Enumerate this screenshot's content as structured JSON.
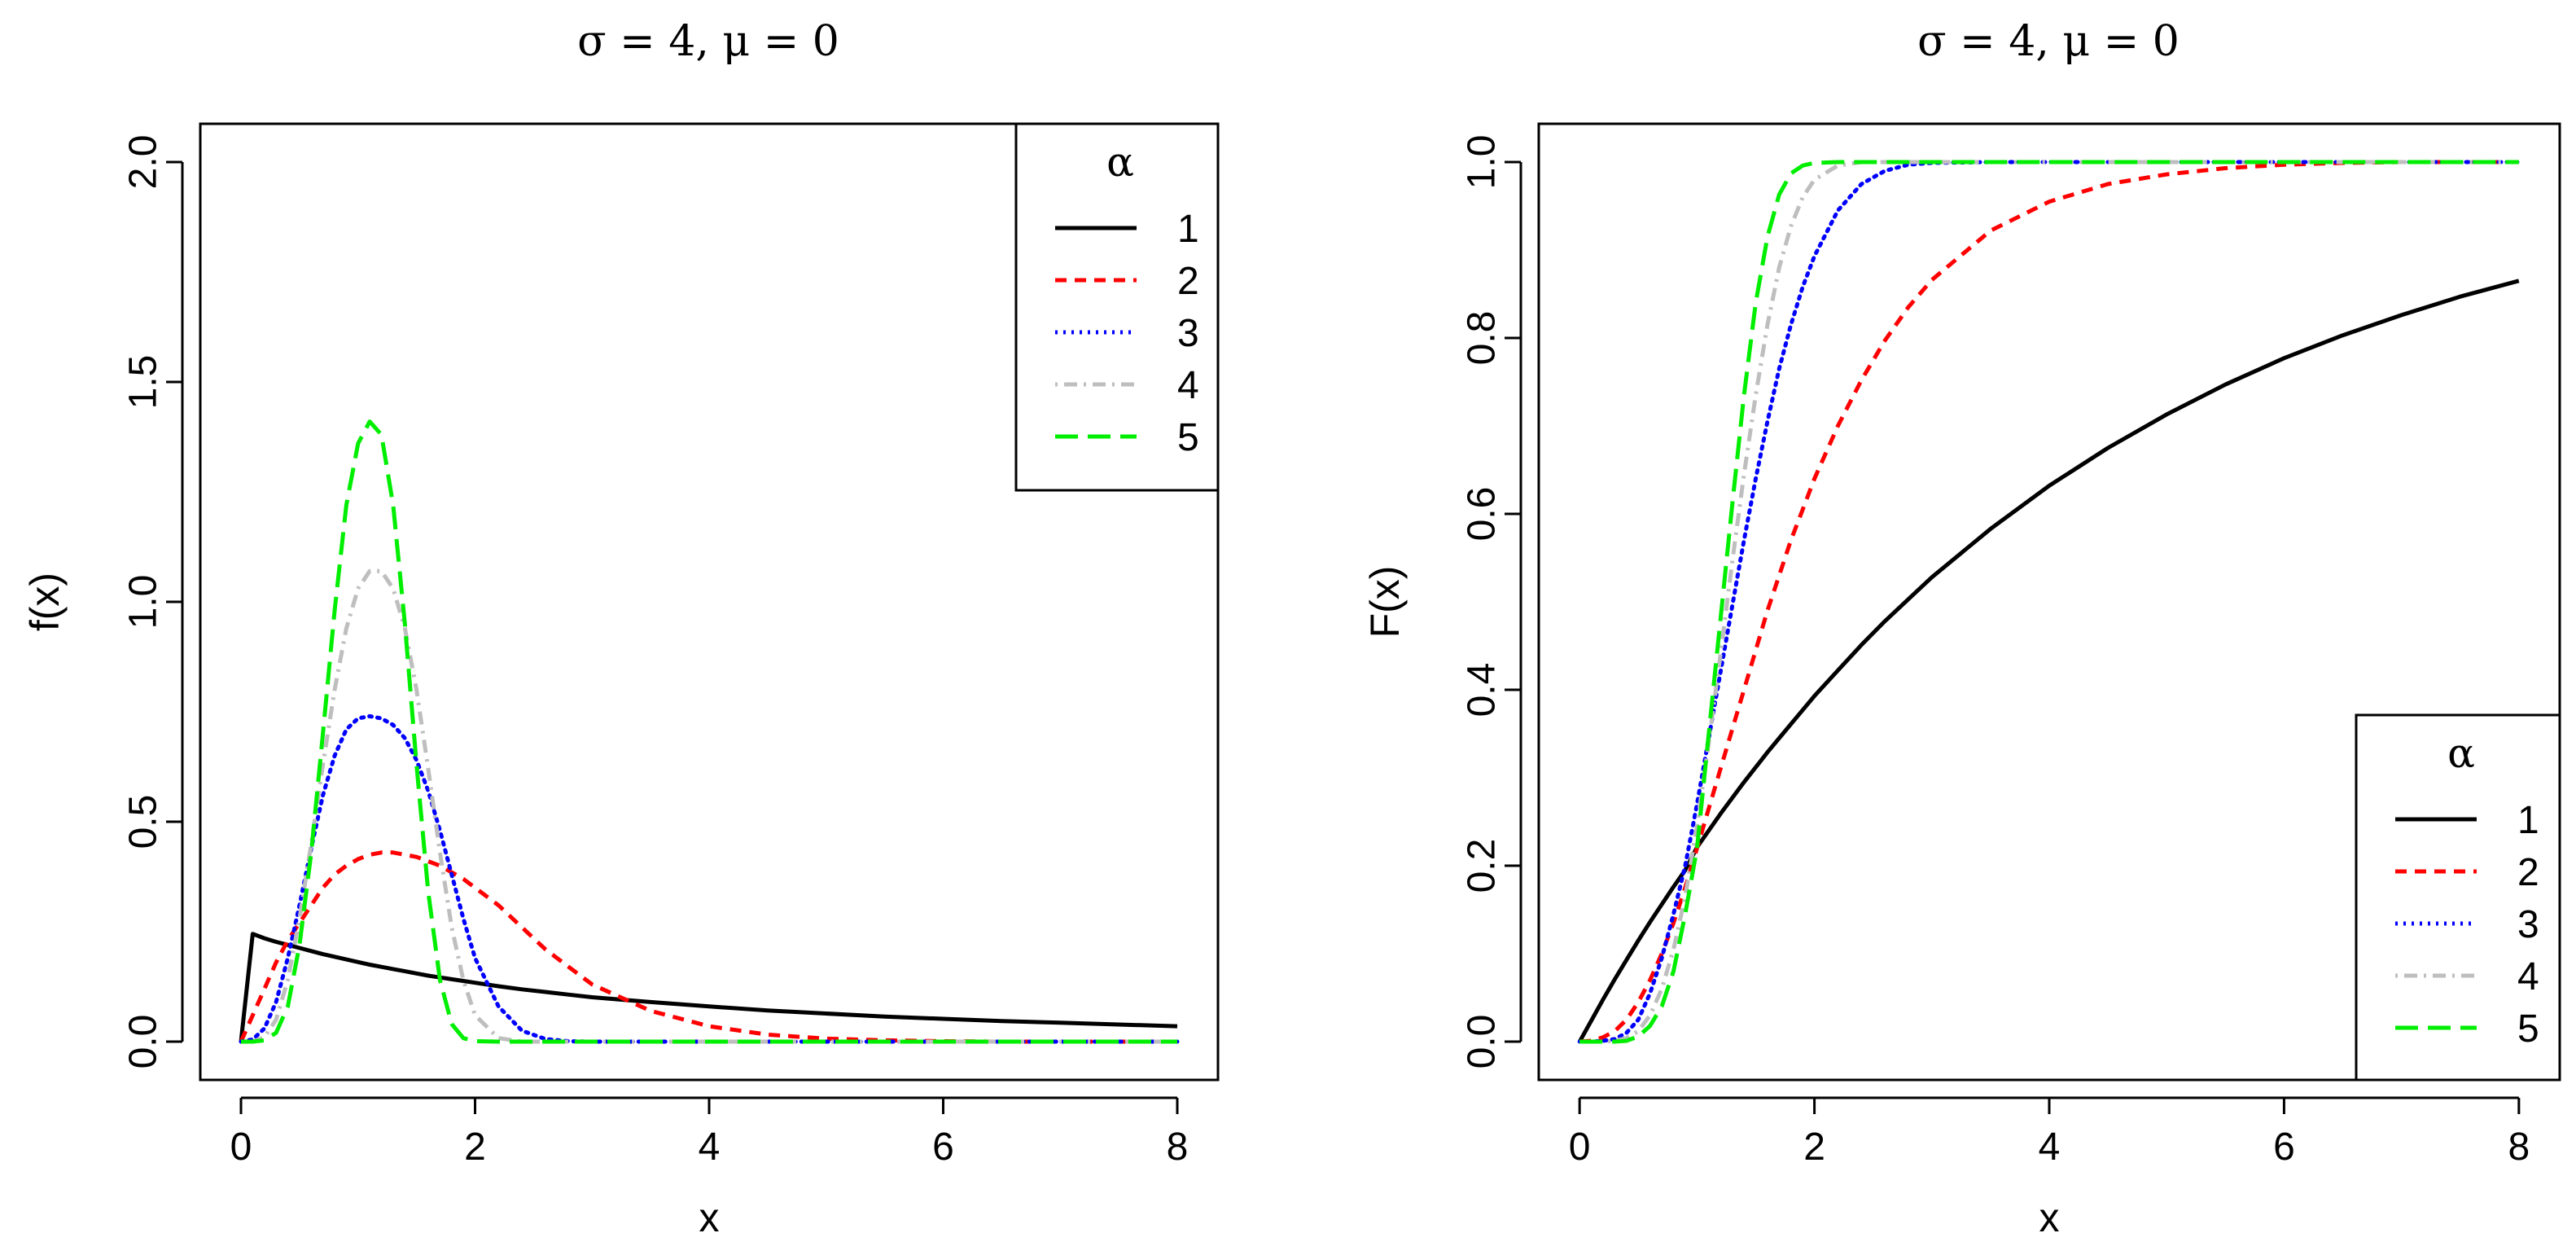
{
  "chart_data": [
    {
      "type": "line",
      "title": "σ = 4, μ = 0",
      "xlabel": "x",
      "ylabel": "f(x)",
      "xlim": [
        0,
        8
      ],
      "ylim": [
        0,
        2
      ],
      "x_ticks": [
        0,
        2,
        4,
        6,
        8
      ],
      "y_ticks": [
        0,
        0.5,
        1,
        1.5,
        2
      ],
      "x_tick_labels": [
        "0",
        "2",
        "4",
        "6",
        "8"
      ],
      "y_tick_labels": [
        "0.0",
        "0.5",
        "1.0",
        "1.5",
        "2.0"
      ],
      "grid": false,
      "legend": {
        "title": "α",
        "placement": "top-right",
        "entries": [
          "1",
          "2",
          "3",
          "4",
          "5"
        ]
      },
      "x": [
        0,
        0.1,
        0.2,
        0.3,
        0.4,
        0.5,
        0.6,
        0.7,
        0.8,
        0.9,
        1.0,
        1.1,
        1.2,
        1.3,
        1.4,
        1.5,
        1.6,
        1.7,
        1.8,
        1.9,
        2.0,
        2.2,
        2.4,
        2.6,
        2.8,
        3.0,
        3.5,
        4.0,
        4.5,
        5.0,
        5.5,
        6.0,
        6.5,
        7.0,
        7.5,
        8.0
      ],
      "series": [
        {
          "name": "1",
          "color": "#000000",
          "dash": "solid",
          "values": [
            0,
            0.245,
            0.235,
            0.227,
            0.22,
            0.213,
            0.206,
            0.199,
            0.193,
            0.187,
            0.181,
            0.175,
            0.17,
            0.165,
            0.16,
            0.155,
            0.15,
            0.146,
            0.142,
            0.138,
            0.134,
            0.126,
            0.119,
            0.113,
            0.107,
            0.101,
            0.09,
            0.08,
            0.071,
            0.064,
            0.057,
            0.052,
            0.047,
            0.043,
            0.039,
            0.035
          ]
        },
        {
          "name": "2",
          "color": "#ff0000",
          "dash": "short-dash",
          "values": [
            0,
            0.06,
            0.12,
            0.18,
            0.23,
            0.27,
            0.31,
            0.35,
            0.38,
            0.4,
            0.415,
            0.425,
            0.43,
            0.43,
            0.425,
            0.42,
            0.41,
            0.4,
            0.385,
            0.37,
            0.35,
            0.31,
            0.26,
            0.21,
            0.17,
            0.13,
            0.07,
            0.035,
            0.016,
            0.007,
            0.003,
            0.001,
            0,
            0,
            0,
            0
          ]
        },
        {
          "name": "3",
          "color": "#0000ff",
          "dash": "dotted",
          "values": [
            0,
            0.005,
            0.03,
            0.09,
            0.19,
            0.31,
            0.44,
            0.56,
            0.65,
            0.71,
            0.735,
            0.74,
            0.735,
            0.72,
            0.69,
            0.64,
            0.57,
            0.48,
            0.38,
            0.28,
            0.19,
            0.08,
            0.025,
            0.006,
            0.001,
            0,
            0,
            0,
            0,
            0,
            0,
            0,
            0,
            0,
            0,
            0
          ]
        },
        {
          "name": "4",
          "color": "#bebebe",
          "dash": "dot-dash",
          "values": [
            0,
            0,
            0.01,
            0.05,
            0.14,
            0.28,
            0.45,
            0.63,
            0.8,
            0.94,
            1.03,
            1.07,
            1.07,
            1.03,
            0.94,
            0.8,
            0.62,
            0.43,
            0.26,
            0.14,
            0.06,
            0.008,
            0,
            0,
            0,
            0,
            0,
            0,
            0,
            0,
            0,
            0,
            0,
            0,
            0,
            0
          ]
        },
        {
          "name": "5",
          "color": "#00ee00",
          "dash": "long-dash",
          "values": [
            0,
            0,
            0.003,
            0.02,
            0.08,
            0.22,
            0.43,
            0.7,
            0.98,
            1.22,
            1.36,
            1.41,
            1.38,
            1.22,
            0.95,
            0.63,
            0.34,
            0.14,
            0.04,
            0.008,
            0.001,
            0,
            0,
            0,
            0,
            0,
            0,
            0,
            0,
            0,
            0,
            0,
            0,
            0,
            0,
            0
          ]
        }
      ]
    },
    {
      "type": "line",
      "title": "σ = 4, μ = 0",
      "xlabel": "x",
      "ylabel": "F(x)",
      "xlim": [
        0,
        8
      ],
      "ylim": [
        0,
        1
      ],
      "x_ticks": [
        0,
        2,
        4,
        6,
        8
      ],
      "y_ticks": [
        0,
        0.2,
        0.4,
        0.6,
        0.8,
        1.0
      ],
      "x_tick_labels": [
        "0",
        "2",
        "4",
        "6",
        "8"
      ],
      "y_tick_labels": [
        "0.0",
        "0.2",
        "0.4",
        "0.6",
        "0.8",
        "1.0"
      ],
      "grid": false,
      "legend": {
        "title": "α",
        "placement": "bottom-right",
        "entries": [
          "1",
          "2",
          "3",
          "4",
          "5"
        ]
      },
      "x": [
        0,
        0.1,
        0.2,
        0.3,
        0.4,
        0.5,
        0.6,
        0.7,
        0.8,
        0.9,
        1.0,
        1.1,
        1.2,
        1.3,
        1.4,
        1.5,
        1.6,
        1.7,
        1.8,
        1.9,
        2.0,
        2.2,
        2.4,
        2.6,
        2.8,
        3.0,
        3.5,
        4.0,
        4.5,
        5.0,
        5.5,
        6.0,
        6.5,
        7.0,
        7.5,
        8.0
      ],
      "series": [
        {
          "name": "1",
          "color": "#000000",
          "dash": "solid",
          "values": [
            0,
            0.024,
            0.048,
            0.071,
            0.093,
            0.115,
            0.136,
            0.156,
            0.176,
            0.195,
            0.221,
            0.24,
            0.259,
            0.277,
            0.295,
            0.312,
            0.329,
            0.345,
            0.361,
            0.377,
            0.393,
            0.422,
            0.451,
            0.478,
            0.503,
            0.528,
            0.583,
            0.632,
            0.675,
            0.713,
            0.747,
            0.777,
            0.803,
            0.826,
            0.847,
            0.865
          ]
        },
        {
          "name": "2",
          "color": "#ff0000",
          "dash": "short-dash",
          "values": [
            0,
            0.001,
            0.005,
            0.012,
            0.025,
            0.045,
            0.07,
            0.1,
            0.135,
            0.175,
            0.22,
            0.265,
            0.31,
            0.355,
            0.4,
            0.445,
            0.49,
            0.53,
            0.57,
            0.605,
            0.64,
            0.7,
            0.752,
            0.797,
            0.835,
            0.866,
            0.922,
            0.955,
            0.975,
            0.986,
            0.993,
            0.997,
            0.999,
            1.0,
            1.0,
            1.0
          ]
        },
        {
          "name": "3",
          "color": "#0000ff",
          "dash": "dotted",
          "values": [
            0,
            0,
            0.001,
            0.003,
            0.01,
            0.025,
            0.055,
            0.095,
            0.145,
            0.2,
            0.27,
            0.345,
            0.42,
            0.495,
            0.57,
            0.64,
            0.705,
            0.765,
            0.815,
            0.858,
            0.893,
            0.945,
            0.975,
            0.99,
            0.997,
            0.999,
            1.0,
            1.0,
            1.0,
            1.0,
            1.0,
            1.0,
            1.0,
            1.0,
            1.0,
            1.0
          ]
        },
        {
          "name": "4",
          "color": "#bebebe",
          "dash": "dot-dash",
          "values": [
            0,
            0,
            0,
            0.001,
            0.004,
            0.012,
            0.03,
            0.06,
            0.105,
            0.165,
            0.245,
            0.34,
            0.44,
            0.545,
            0.645,
            0.735,
            0.815,
            0.88,
            0.927,
            0.96,
            0.98,
            0.996,
            1.0,
            1.0,
            1.0,
            1.0,
            1.0,
            1.0,
            1.0,
            1.0,
            1.0,
            1.0,
            1.0,
            1.0,
            1.0,
            1.0
          ]
        },
        {
          "name": "5",
          "color": "#00ee00",
          "dash": "long-dash",
          "values": [
            0,
            0,
            0,
            0,
            0.001,
            0.006,
            0.018,
            0.04,
            0.08,
            0.145,
            0.22,
            0.35,
            0.48,
            0.61,
            0.735,
            0.84,
            0.915,
            0.963,
            0.987,
            0.996,
            0.999,
            1.0,
            1.0,
            1.0,
            1.0,
            1.0,
            1.0,
            1.0,
            1.0,
            1.0,
            1.0,
            1.0,
            1.0,
            1.0,
            1.0,
            1.0
          ]
        }
      ]
    }
  ]
}
